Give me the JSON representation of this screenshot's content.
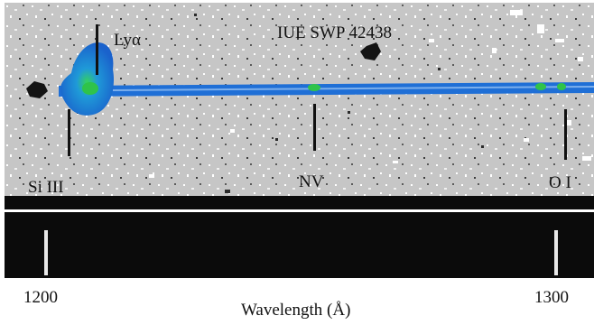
{
  "figure": {
    "title": "IUE SWP 42438",
    "line_labels": {
      "lya": "Lyα",
      "si_iii": "Si III",
      "nv": "NV",
      "oi": "O I"
    },
    "axis": {
      "title": "Wavelength (Å)",
      "ticks": [
        "1200",
        "1300"
      ]
    }
  },
  "colors": {
    "background_noise": "#c6c6c6",
    "spectrum_trace": "#1f6fd6",
    "peak_emission": "#2fc34a",
    "reticle_band": "#0b0b0b"
  }
}
